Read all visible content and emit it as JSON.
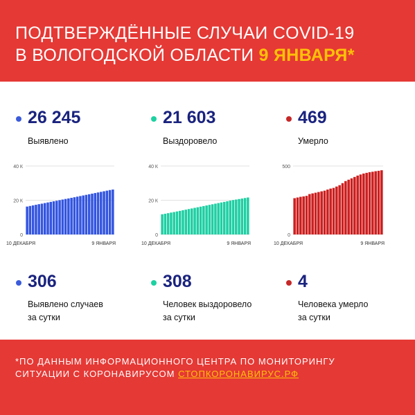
{
  "header": {
    "title_line1": "ПОДТВЕРЖДЁННЫЕ СЛУЧАИ COVID-19",
    "title_line2": "В ВОЛОГОДСКОЙ ОБЛАСТИ",
    "date": "9 ЯНВАРЯ*"
  },
  "totals": [
    {
      "value": "26 245",
      "label": "Выявлено",
      "color": "#3b5bdb"
    },
    {
      "value": "21 603",
      "label": "Выздоровело",
      "color": "#1dd1a1"
    },
    {
      "value": "469",
      "label": "Умерло",
      "color": "#c62828"
    }
  ],
  "daily": [
    {
      "value": "306",
      "label_line1": "Выявлено случаев",
      "label_line2": "за сутки",
      "color": "#3b5bdb"
    },
    {
      "value": "308",
      "label_line1": "Человек выздоровело",
      "label_line2": "за сутки",
      "color": "#1dd1a1"
    },
    {
      "value": "4",
      "label_line1": "Человека умерло",
      "label_line2": "за сутки",
      "color": "#c62828"
    }
  ],
  "footer": {
    "line1": "*ПО ДАННЫМ ИНФОРМАЦИОННОГО ЦЕНТРА ПО МОНИТОРИНГУ",
    "line2_prefix": "СИТУАЦИИ С КОРОНАВИРУСОМ",
    "link": "СТОПКОРОНАВИРУС.РФ"
  },
  "chart_data": [
    {
      "type": "bar",
      "x_start": "10 ДЕКАБРЯ",
      "x_end": "9 ЯНВАРЯ",
      "ylim": [
        0,
        40000
      ],
      "yticks": [
        0,
        20000,
        40000
      ],
      "ytick_labels": [
        "0",
        "20 К",
        "40 К"
      ],
      "color": "#3355e0",
      "values": [
        16300,
        16650,
        17000,
        17350,
        17700,
        18000,
        18350,
        18700,
        19050,
        19400,
        19700,
        20050,
        20400,
        20750,
        21050,
        21400,
        21750,
        22100,
        22450,
        22800,
        23150,
        23500,
        23850,
        24200,
        24550,
        24900,
        25250,
        25600,
        25950,
        26245
      ]
    },
    {
      "type": "bar",
      "x_start": "10 ДЕКАБРЯ",
      "x_end": "9 ЯНВАРЯ",
      "ylim": [
        0,
        40000
      ],
      "yticks": [
        0,
        20000,
        40000
      ],
      "ytick_labels": [
        "0",
        "20 К",
        "40 К"
      ],
      "color": "#1fcfa3",
      "values": [
        11800,
        12100,
        12450,
        12800,
        13100,
        13450,
        13800,
        14150,
        14500,
        14850,
        15200,
        15550,
        15900,
        16250,
        16600,
        16950,
        17300,
        17650,
        18000,
        18350,
        18700,
        19050,
        19400,
        19750,
        20100,
        20400,
        20700,
        21000,
        21300,
        21603
      ]
    },
    {
      "type": "bar",
      "x_start": "10 ДЕКАБРЯ",
      "x_end": "9 ЯНВАРЯ",
      "ylim": [
        0,
        500
      ],
      "yticks": [
        0,
        500
      ],
      "ytick_labels": [
        "0",
        "500"
      ],
      "color": "#cc1f1f",
      "values": [
        265,
        270,
        275,
        278,
        282,
        295,
        300,
        305,
        310,
        315,
        320,
        328,
        335,
        340,
        350,
        360,
        375,
        390,
        400,
        410,
        420,
        430,
        438,
        445,
        450,
        455,
        458,
        462,
        465,
        469
      ]
    }
  ]
}
